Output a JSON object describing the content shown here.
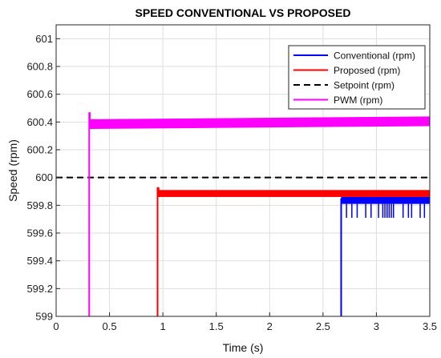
{
  "chart_data": {
    "type": "line",
    "title": "SPEED CONVENTIONAL VS PROPOSED",
    "xlabel": "Time (s)",
    "ylabel": "Speed (rpm)",
    "xlim": [
      0,
      3.5
    ],
    "ylim": [
      599,
      601.1
    ],
    "xticks": [
      0,
      0.5,
      1,
      1.5,
      2,
      2.5,
      3,
      3.5
    ],
    "xtick_labels": [
      "0",
      "0.5",
      "1",
      "1.5",
      "2",
      "2.5",
      "3",
      "3.5"
    ],
    "yticks": [
      599,
      599.2,
      599.4,
      599.6,
      599.8,
      600,
      600.2,
      600.4,
      600.6,
      600.8,
      601
    ],
    "ytick_labels": [
      "599",
      "599.2",
      "599.4",
      "599.6",
      "599.8",
      "600",
      "600.2",
      "600.4",
      "600.6",
      "600.8",
      "601"
    ],
    "grid": true,
    "legend_position": "top-right",
    "series": [
      {
        "name": "Conventional (rpm)",
        "color": "#0000ff",
        "style": "solid",
        "start_time": 2.67,
        "steady_value": 599.85,
        "band": [
          599.81,
          599.86
        ],
        "dip_value": 599.71,
        "dip_times": [
          2.72,
          2.77,
          2.82,
          2.9,
          2.95,
          3.02,
          3.06,
          3.08,
          3.1,
          3.12,
          3.14,
          3.16,
          3.25,
          3.3,
          3.33,
          3.41,
          3.45
        ],
        "x": [
          2.67,
          2.67,
          3.5
        ],
        "y": [
          599,
          599.85,
          599.85
        ]
      },
      {
        "name": "Proposed (rpm)",
        "color": "#ff0000",
        "style": "solid",
        "start_time": 0.95,
        "peak_value": 599.93,
        "band": [
          599.86,
          599.91
        ],
        "x": [
          0.95,
          0.95,
          3.5
        ],
        "y": [
          599,
          599.885,
          599.885
        ]
      },
      {
        "name": "Setpoint (rpm)",
        "color": "#000000",
        "style": "dashed",
        "x": [
          0,
          3.5
        ],
        "y": [
          600,
          600
        ]
      },
      {
        "name": "PWM (rpm)",
        "color": "#ff00ff",
        "style": "solid",
        "start_time": 0.31,
        "peak_value": 600.47,
        "band_start": [
          600.35,
          600.42
        ],
        "band_end": [
          600.37,
          600.44
        ],
        "x": [
          0.31,
          0.31,
          3.5
        ],
        "y": [
          599,
          600.39,
          600.405
        ]
      }
    ]
  }
}
